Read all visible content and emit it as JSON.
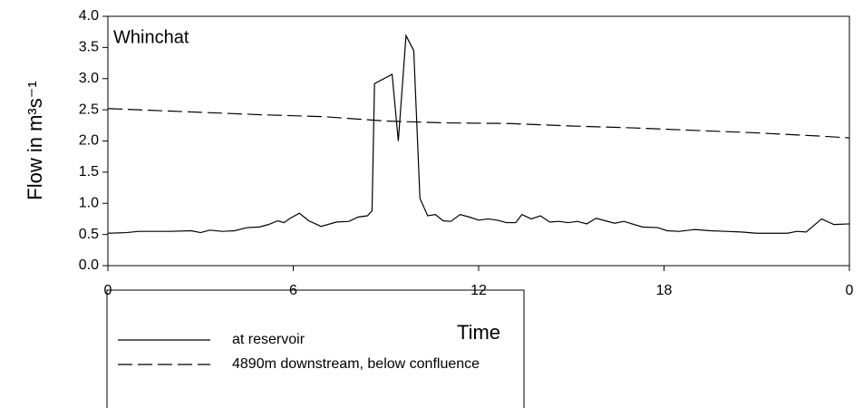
{
  "chart_data": {
    "type": "line",
    "annotation": "Whinchat",
    "xlabel": "Time",
    "ylabel": "Flow in m³s⁻¹",
    "xlim": [
      0,
      24
    ],
    "xticks": [
      0,
      6,
      12,
      18,
      {
        "value": 24,
        "label": "0"
      }
    ],
    "ylim": [
      0,
      4
    ],
    "yticks": [
      {
        "value": 0,
        "label": "0.0"
      },
      0.5,
      {
        "value": 1,
        "label": "1.0"
      },
      1.5,
      {
        "value": 2,
        "label": "2.0"
      },
      2.5,
      {
        "value": 3,
        "label": "3.0"
      },
      3.5,
      {
        "value": 4,
        "label": "4.0"
      }
    ],
    "series": [
      {
        "name": "at reservoir",
        "color": "#000000",
        "dash": "solid",
        "x": [
          0,
          0.6,
          1,
          2,
          2.7,
          3,
          3.3,
          3.7,
          4.1,
          4.5,
          4.9,
          5.2,
          5.5,
          5.7,
          5.9,
          6.2,
          6.5,
          6.9,
          7.4,
          7.8,
          8.1,
          8.4,
          8.55,
          8.63,
          9.2,
          9.4,
          9.65,
          9.9,
          10.1,
          10.35,
          10.6,
          10.85,
          11.1,
          11.4,
          11.7,
          12,
          12.3,
          12.6,
          12.9,
          13.2,
          13.4,
          13.7,
          14,
          14.3,
          14.6,
          14.9,
          15.2,
          15.5,
          15.8,
          16.1,
          16.4,
          16.7,
          17.3,
          17.8,
          18.1,
          18.5,
          19,
          19.5,
          20,
          20.5,
          21,
          21.5,
          22,
          22.3,
          22.6,
          23.1,
          23.5,
          24
        ],
        "values": [
          0.52,
          0.53,
          0.55,
          0.55,
          0.56,
          0.53,
          0.57,
          0.55,
          0.56,
          0.61,
          0.62,
          0.66,
          0.72,
          0.69,
          0.76,
          0.84,
          0.72,
          0.63,
          0.7,
          0.71,
          0.78,
          0.8,
          0.88,
          2.92,
          3.07,
          2.0,
          3.69,
          3.45,
          1.08,
          0.8,
          0.82,
          0.72,
          0.71,
          0.82,
          0.78,
          0.73,
          0.75,
          0.73,
          0.69,
          0.69,
          0.82,
          0.75,
          0.8,
          0.7,
          0.71,
          0.69,
          0.71,
          0.67,
          0.76,
          0.72,
          0.68,
          0.71,
          0.62,
          0.61,
          0.56,
          0.55,
          0.58,
          0.56,
          0.55,
          0.54,
          0.52,
          0.52,
          0.52,
          0.55,
          0.54,
          0.75,
          0.66,
          0.67
        ]
      },
      {
        "name": "4890m downstream, below confluence",
        "color": "#000000",
        "dash": "dashed",
        "x": [
          0,
          1,
          3,
          5,
          7,
          9,
          11,
          13,
          15,
          17,
          19,
          21,
          23,
          24
        ],
        "values": [
          2.52,
          2.5,
          2.46,
          2.42,
          2.39,
          2.32,
          2.29,
          2.28,
          2.24,
          2.21,
          2.17,
          2.13,
          2.08,
          2.05
        ]
      }
    ]
  }
}
